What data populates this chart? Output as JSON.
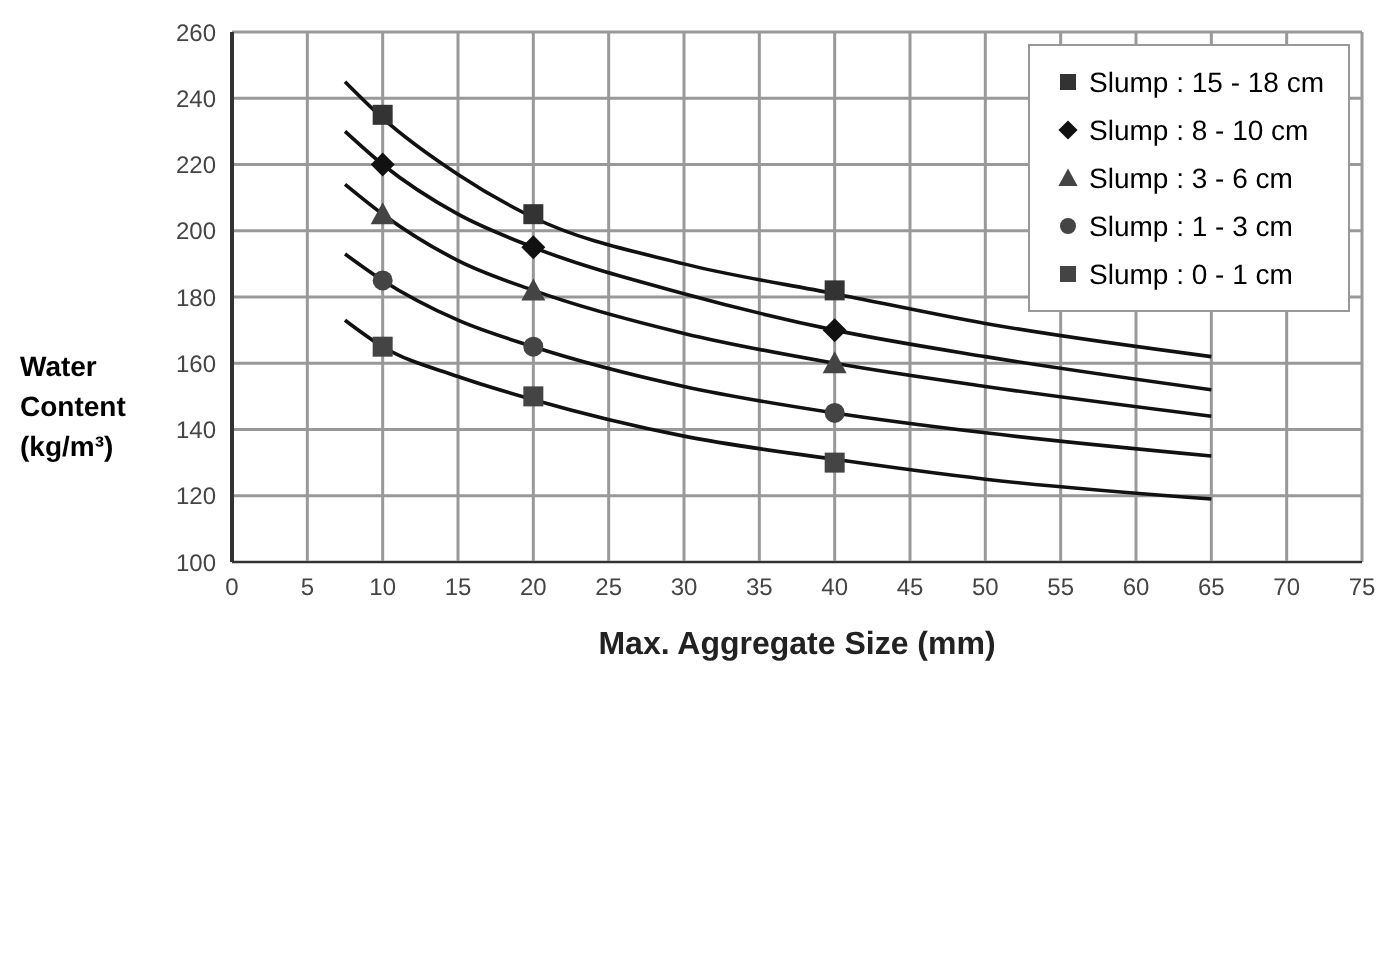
{
  "chart_data": {
    "type": "scatter",
    "xlabel": "Max. Aggregate Size (mm)",
    "ylabel": "Water Content (kg/m³)",
    "xlim": [
      0,
      75
    ],
    "xticks": [
      0,
      5,
      10,
      15,
      20,
      25,
      30,
      35,
      40,
      45,
      50,
      55,
      60,
      65,
      70,
      75
    ],
    "ylim": [
      100,
      260
    ],
    "yticks": [
      100,
      120,
      140,
      160,
      180,
      200,
      220,
      240,
      260
    ],
    "grid": true,
    "legend": "top right",
    "series": [
      {
        "name": "Slump : 15 - 18 cm",
        "marker": "square",
        "color": "#333333",
        "x": [
          10,
          20,
          40
        ],
        "values": [
          235,
          205,
          182
        ]
      },
      {
        "name": "Slump : 8 - 10 cm",
        "marker": "diamond",
        "color": "#111111",
        "x": [
          10,
          20,
          40
        ],
        "values": [
          220,
          195,
          170
        ]
      },
      {
        "name": "Slump : 3 - 6 cm",
        "marker": "triangle",
        "color": "#444444",
        "x": [
          10,
          20,
          40
        ],
        "values": [
          205,
          182,
          160
        ]
      },
      {
        "name": "Slump : 1 - 3 cm",
        "marker": "circle",
        "color": "#444444",
        "x": [
          10,
          20,
          40
        ],
        "values": [
          185,
          165,
          145
        ]
      },
      {
        "name": "Slump : 0 - 1 cm",
        "marker": "square",
        "color": "#444444",
        "x": [
          10,
          20,
          40
        ],
        "values": [
          165,
          150,
          130
        ]
      },
      {
        "type": "line",
        "marker": "none",
        "line_style": "solid",
        "color": "#111111",
        "x": [
          7.5,
          10,
          15,
          20,
          30,
          40,
          50,
          65
        ],
        "values": [
          245,
          234,
          217,
          204,
          190,
          181,
          172,
          162
        ]
      },
      {
        "type": "line",
        "marker": "none",
        "line_style": "solid",
        "color": "#111111",
        "x": [
          7.5,
          10,
          15,
          20,
          30,
          40,
          50,
          65
        ],
        "values": [
          230,
          220,
          205,
          195,
          181,
          170,
          162,
          152
        ]
      },
      {
        "type": "line",
        "marker": "none",
        "line_style": "solid",
        "color": "#111111",
        "x": [
          7.5,
          10,
          15,
          20,
          30,
          40,
          50,
          65
        ],
        "values": [
          214,
          205,
          191,
          182,
          169,
          160,
          153,
          144
        ]
      },
      {
        "type": "line",
        "marker": "none",
        "line_style": "solid",
        "color": "#111111",
        "x": [
          7.5,
          10,
          15,
          20,
          30,
          40,
          50,
          65
        ],
        "values": [
          193,
          185,
          173,
          165,
          153,
          145,
          139,
          132
        ]
      },
      {
        "type": "line",
        "marker": "none",
        "line_style": "solid",
        "color": "#111111",
        "x": [
          7.5,
          10,
          15,
          20,
          30,
          40,
          50,
          65
        ],
        "values": [
          173,
          165,
          156,
          149,
          138,
          131,
          125,
          119
        ]
      }
    ]
  }
}
